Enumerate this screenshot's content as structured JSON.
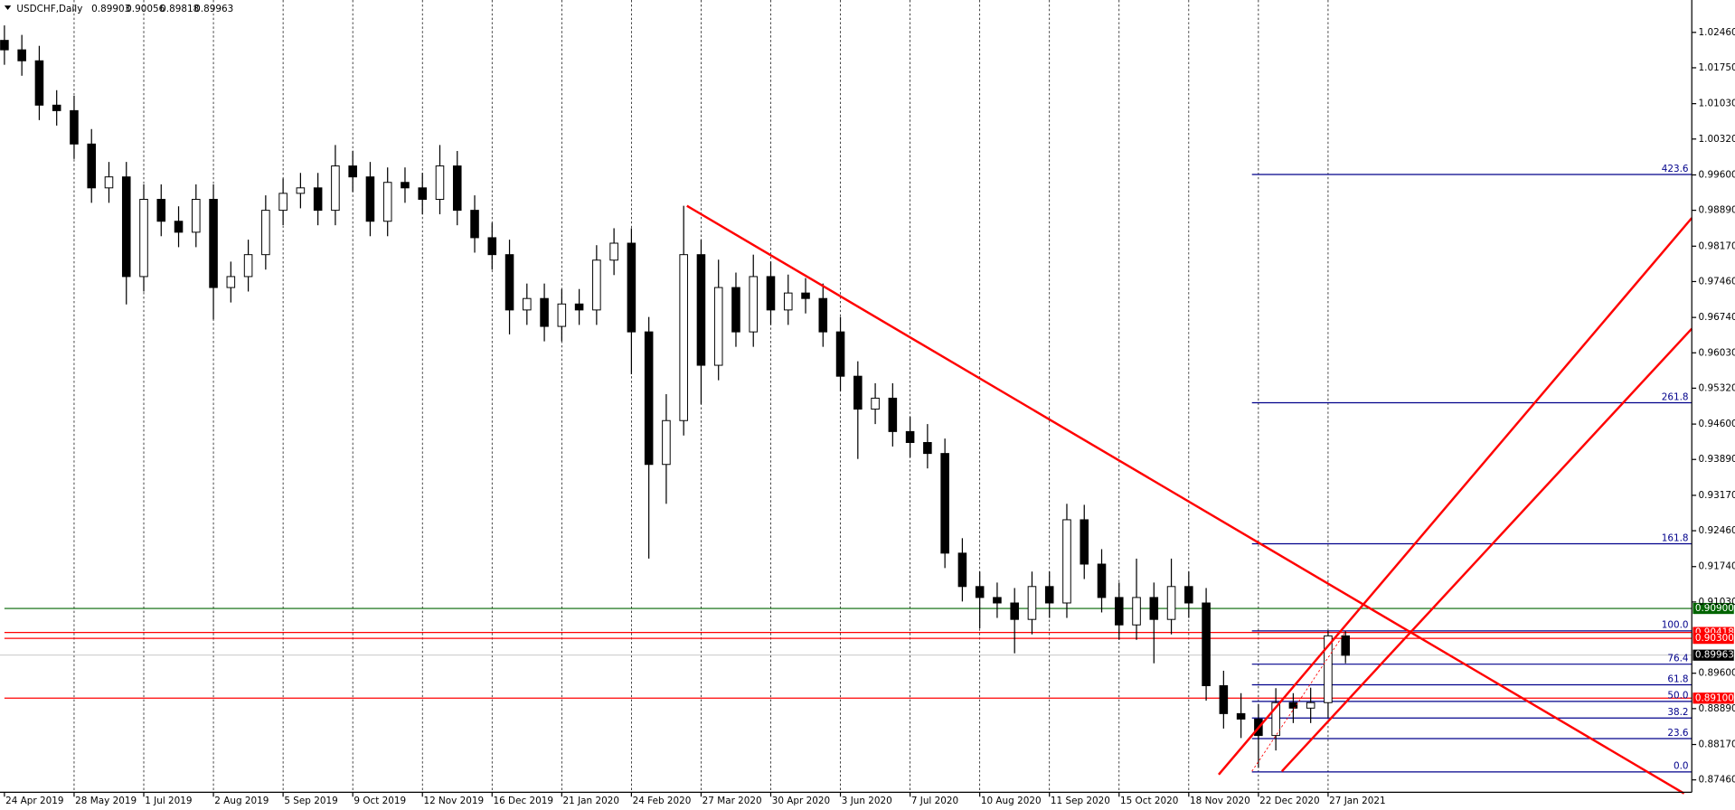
{
  "chart_data": {
    "type": "candlestick",
    "title": "USDCHF,Daily",
    "ohlc_info": [
      0.89903,
      0.90056,
      0.89818,
      0.89963
    ],
    "categories": [
      "24 Apr 2019",
      null,
      null,
      null,
      "28 May 2019",
      null,
      null,
      null,
      "1 Jul 2019",
      null,
      null,
      null,
      "2 Aug 2019",
      null,
      null,
      null,
      "5 Sep 2019",
      null,
      null,
      null,
      "9 Oct 2019",
      null,
      null,
      null,
      "12 Nov 2019",
      null,
      null,
      null,
      "16 Dec 2019",
      null,
      null,
      null,
      "21 Jan 2020",
      null,
      null,
      null,
      "24 Feb 2020",
      null,
      null,
      null,
      "27 Mar 2020",
      null,
      null,
      null,
      "30 Apr 2020",
      null,
      null,
      null,
      "3 Jun 2020",
      null,
      null,
      null,
      "7 Jul 2020",
      null,
      null,
      null,
      "10 Aug 2020",
      null,
      null,
      null,
      "11 Sep 2020",
      null,
      null,
      null,
      "15 Oct 2020",
      null,
      null,
      null,
      "18 Nov 2020",
      null,
      null,
      null,
      "22 Dec 2020",
      null,
      null,
      null,
      "27 Jan 2021",
      null
    ],
    "open": [
      1.023,
      1.0211,
      1.0189,
      1.01,
      1.0089,
      1.0022,
      0.9934,
      0.9956,
      0.9756,
      0.9911,
      0.9867,
      0.9845,
      0.9911,
      0.9734,
      0.9756,
      0.98,
      0.9889,
      0.9923,
      0.9934,
      0.9889,
      0.9978,
      0.9956,
      0.9867,
      0.9945,
      0.9934,
      0.9911,
      0.9978,
      0.9889,
      0.9834,
      0.98,
      0.9689,
      0.9712,
      0.9656,
      0.9701,
      0.9689,
      0.9789,
      0.9823,
      0.9645,
      0.9379,
      0.9467,
      0.98,
      0.9578,
      0.9734,
      0.9645,
      0.9756,
      0.9689,
      0.9723,
      0.9712,
      0.9645,
      0.9556,
      0.949,
      0.9512,
      0.9445,
      0.9423,
      0.9401,
      0.9201,
      0.9134,
      0.9112,
      0.9101,
      0.9068,
      0.9134,
      0.9101,
      0.9268,
      0.9179,
      0.9112,
      0.9057,
      0.9112,
      0.9068,
      0.9134,
      0.9101,
      0.8935,
      0.8879,
      0.8868,
      0.8835,
      0.8901,
      0.889,
      0.8901,
      0.9035
    ],
    "high": [
      1.026,
      1.0241,
      1.0219,
      1.013,
      1.0119,
      1.0052,
      0.9986,
      0.9986,
      0.9941,
      0.9941,
      0.9897,
      0.9941,
      0.9941,
      0.9786,
      0.983,
      0.9919,
      0.9953,
      0.9964,
      0.9964,
      1.002,
      1.0008,
      0.9986,
      0.9975,
      0.9975,
      0.9964,
      1.002,
      1.0008,
      0.9919,
      0.9864,
      0.983,
      0.9742,
      0.9742,
      0.9731,
      0.9731,
      0.9819,
      0.9853,
      0.9853,
      0.9675,
      0.952,
      0.9898,
      0.983,
      0.979,
      0.9764,
      0.98,
      0.9786,
      0.976,
      0.9753,
      0.9742,
      0.9675,
      0.9586,
      0.9542,
      0.9542,
      0.9475,
      0.946,
      0.9431,
      0.9231,
      0.9164,
      0.9142,
      0.9131,
      0.9164,
      0.9164,
      0.93,
      0.9298,
      0.9209,
      0.9142,
      0.919,
      0.9142,
      0.919,
      0.9164,
      0.9131,
      0.8965,
      0.892,
      0.8898,
      0.893,
      0.892,
      0.8931,
      0.9045,
      0.9045
    ],
    "low": [
      1.0181,
      1.0159,
      1.007,
      1.0059,
      0.9992,
      0.9904,
      0.9904,
      0.97,
      0.9726,
      0.9837,
      0.9815,
      0.9815,
      0.967,
      0.9704,
      0.9726,
      0.977,
      0.9859,
      0.9893,
      0.9859,
      0.9859,
      0.9926,
      0.9837,
      0.9837,
      0.9904,
      0.9881,
      0.9881,
      0.9859,
      0.9804,
      0.977,
      0.964,
      0.9659,
      0.9626,
      0.9626,
      0.9659,
      0.9659,
      0.9759,
      0.956,
      0.919,
      0.93,
      0.9437,
      0.95,
      0.9548,
      0.9615,
      0.9615,
      0.9659,
      0.9659,
      0.9682,
      0.9615,
      0.9526,
      0.939,
      0.946,
      0.9415,
      0.9393,
      0.9371,
      0.9171,
      0.9104,
      0.905,
      0.9071,
      0.9,
      0.9038,
      0.9071,
      0.9071,
      0.9149,
      0.9082,
      0.9027,
      0.9027,
      0.898,
      0.9038,
      0.9071,
      0.8905,
      0.8849,
      0.883,
      0.877,
      0.8805,
      0.886,
      0.886,
      0.8871,
      0.898
    ],
    "close": [
      1.0211,
      1.0189,
      1.01,
      1.0089,
      1.0022,
      0.9934,
      0.9956,
      0.9756,
      0.9911,
      0.9867,
      0.9845,
      0.9911,
      0.9734,
      0.9756,
      0.98,
      0.9889,
      0.9923,
      0.9934,
      0.9889,
      0.9978,
      0.9956,
      0.9867,
      0.9945,
      0.9934,
      0.9911,
      0.9978,
      0.9889,
      0.9834,
      0.98,
      0.9689,
      0.9712,
      0.9656,
      0.9701,
      0.9689,
      0.9789,
      0.9823,
      0.9645,
      0.9379,
      0.9467,
      0.98,
      0.9578,
      0.9734,
      0.9645,
      0.9756,
      0.9689,
      0.9723,
      0.9712,
      0.9645,
      0.9556,
      0.949,
      0.9512,
      0.9445,
      0.9423,
      0.9401,
      0.9201,
      0.9134,
      0.9112,
      0.9101,
      0.9068,
      0.9134,
      0.9101,
      0.9268,
      0.9179,
      0.9112,
      0.9057,
      0.9112,
      0.9068,
      0.9134,
      0.9101,
      0.8935,
      0.8879,
      0.8868,
      0.8835,
      0.8901,
      0.889,
      0.8901,
      0.9035,
      0.8996
    ],
    "color": "#000000",
    "ylim": [
      0.869,
      1.0311
    ],
    "yticks": [
      {
        "value": 1.0246,
        "label": "1.02460"
      },
      {
        "value": 1.0175,
        "label": "1.01750"
      },
      {
        "value": 1.0103,
        "label": "1.01030"
      },
      {
        "value": 1.0032,
        "label": "1.00320"
      },
      {
        "value": 0.996,
        "label": "0.99600"
      },
      {
        "value": 0.9889,
        "label": "0.98890"
      },
      {
        "value": 0.9817,
        "label": "0.98170"
      },
      {
        "value": 0.9746,
        "label": "0.97460"
      },
      {
        "value": 0.9674,
        "label": "0.96740"
      },
      {
        "value": 0.9603,
        "label": "0.96030"
      },
      {
        "value": 0.9532,
        "label": "0.95320"
      },
      {
        "value": 0.946,
        "label": "0.94600"
      },
      {
        "value": 0.9389,
        "label": "0.93890"
      },
      {
        "value": 0.9317,
        "label": "0.93170"
      },
      {
        "value": 0.9246,
        "label": "0.92460"
      },
      {
        "value": 0.9174,
        "label": "0.91740"
      },
      {
        "value": 0.9103,
        "label": "0.91030"
      },
      {
        "value": 0.896,
        "label": "0.89600"
      },
      {
        "value": 0.8889,
        "label": "0.88890"
      },
      {
        "value": 0.8817,
        "label": "0.88170"
      },
      {
        "value": 0.8746,
        "label": "0.87460"
      }
    ],
    "hlines": [
      {
        "value": 0.909,
        "label": "0.90900",
        "color": "#006400"
      },
      {
        "value": 0.90418,
        "label": "0.90418",
        "color": "#ff0000"
      },
      {
        "value": 0.903,
        "label": "0.90300",
        "color": "#ff0000"
      },
      {
        "value": 0.891,
        "label": "0.89100",
        "color": "#ff0000"
      }
    ],
    "current_price": {
      "value": 0.89963,
      "label": "0.89963"
    },
    "fibonacci": {
      "level_0": 0.8762,
      "level_100": 0.9045,
      "color": "#00008b",
      "levels": [
        423.6,
        261.8,
        161.8,
        {
          "value": 100,
          "label": "100.0"
        },
        76.4,
        61.8,
        {
          "value": 50,
          "label": "50.0"
        },
        38.2,
        23.6,
        {
          "value": 0,
          "label": "0.0"
        }
      ]
    }
  }
}
